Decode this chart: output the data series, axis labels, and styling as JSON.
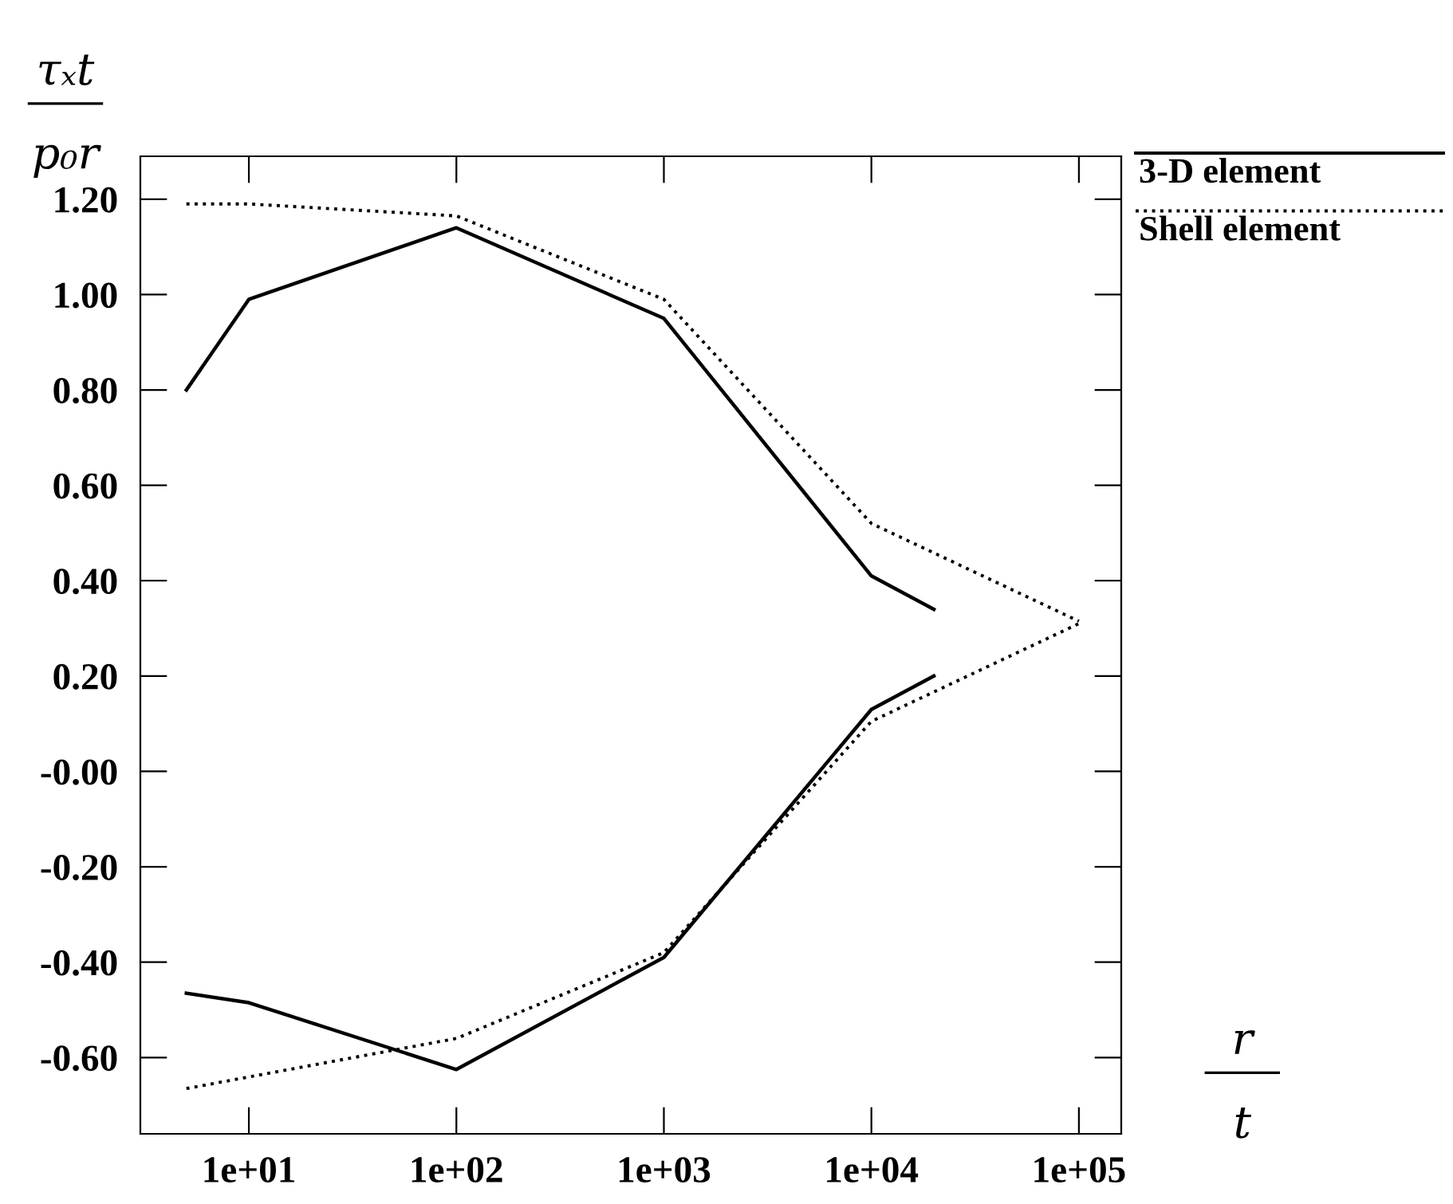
{
  "chart_data": {
    "type": "line",
    "xlabel": "r\nt",
    "ylabel": "τₓt\np₀r",
    "log": "x",
    "xlim": [
      3,
      160000
    ],
    "ylim": [
      -0.76,
      1.29
    ],
    "xticks": [
      {
        "value": 10,
        "label": "1e+01"
      },
      {
        "value": 100,
        "label": "1e+02"
      },
      {
        "value": 1000,
        "label": "1e+03"
      },
      {
        "value": 10000,
        "label": "1e+04"
      },
      {
        "value": 100000,
        "label": "1e+05"
      }
    ],
    "yticks": [
      {
        "value": 1.2,
        "label": "1.20"
      },
      {
        "value": 1.0,
        "label": "1.00"
      },
      {
        "value": 0.8,
        "label": "0.80"
      },
      {
        "value": 0.6,
        "label": "0.60"
      },
      {
        "value": 0.4,
        "label": "0.40"
      },
      {
        "value": 0.2,
        "label": "0.20"
      },
      {
        "value": 0,
        "label": "-0.00"
      },
      {
        "value": -0.2,
        "label": "-0.20"
      },
      {
        "value": -0.4,
        "label": "-0.40"
      },
      {
        "value": -0.6,
        "label": "-0.60"
      }
    ],
    "grid": false,
    "legend": "top right",
    "marker": "none",
    "series": [
      {
        "name": "3-D element",
        "color": "#000000",
        "line_style": "solid",
        "x": [
          5,
          10,
          100,
          1000,
          10000,
          20000
        ],
        "values": [
          0.8,
          0.99,
          1.14,
          0.95,
          0.41,
          0.34
        ]
      },
      {
        "color": "#000000",
        "line_style": "solid",
        "x": [
          5,
          10,
          100,
          1000,
          10000,
          20000
        ],
        "values": [
          -0.465,
          -0.485,
          -0.625,
          -0.39,
          0.13,
          0.2
        ]
      },
      {
        "name": "Shell element",
        "color": "#000000",
        "line_style": "dotted",
        "x": [
          5,
          10,
          100,
          1000,
          10000,
          100000
        ],
        "values": [
          1.19,
          1.19,
          1.165,
          0.99,
          0.52,
          0.315
        ]
      },
      {
        "color": "#000000",
        "line_style": "dotted",
        "x": [
          5,
          100,
          1000,
          10000,
          100000
        ],
        "values": [
          -0.665,
          -0.56,
          -0.38,
          0.105,
          0.31
        ]
      }
    ]
  }
}
